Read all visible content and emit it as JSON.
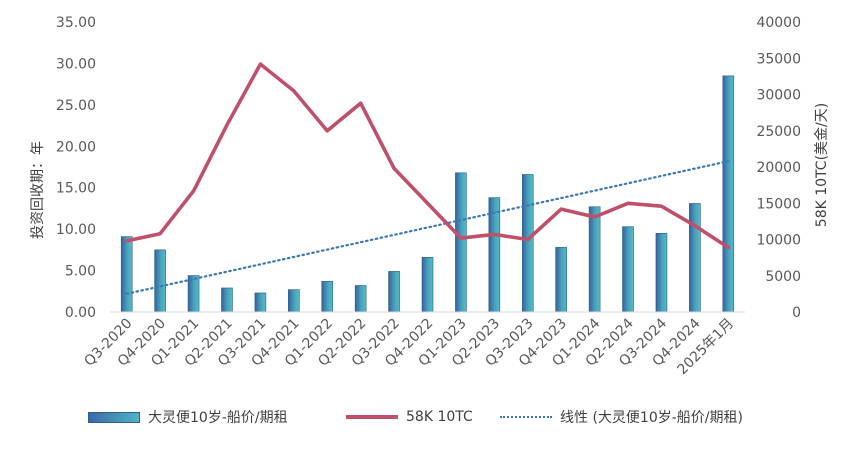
{
  "chart_data": {
    "type": "bar",
    "categories": [
      "Q3-2020",
      "Q4-2020",
      "Q1-2021",
      "Q2-2021",
      "Q3-2021",
      "Q4-2021",
      "Q1-2022",
      "Q2-2022",
      "Q3-2022",
      "Q4-2022",
      "Q1-2023",
      "Q2-2023",
      "Q3-2023",
      "Q4-2023",
      "Q1-2024",
      "Q2-2024",
      "Q3-2024",
      "Q4-2024",
      "2025年1月"
    ],
    "series": [
      {
        "name": "大灵便10岁-船价/期租",
        "type": "bar",
        "axis": "left",
        "values": [
          9.1,
          7.5,
          4.4,
          2.9,
          2.3,
          2.7,
          3.7,
          3.2,
          4.9,
          6.6,
          16.8,
          13.8,
          16.6,
          7.8,
          12.7,
          10.3,
          9.5,
          13.1,
          28.5
        ]
      },
      {
        "name": "58K 10TC",
        "type": "line",
        "axis": "right",
        "values": [
          9800,
          10800,
          16700,
          25800,
          34200,
          30500,
          25000,
          28800,
          19800,
          15000,
          10200,
          10700,
          10000,
          14200,
          13100,
          15000,
          14600,
          11900,
          8900
        ]
      },
      {
        "name": "线性 (大灵便10岁-船价/期租)",
        "type": "trendline",
        "axis": "left",
        "values": [
          2.2,
          3.1,
          4.0,
          4.9,
          5.8,
          6.7,
          7.5,
          8.4,
          9.3,
          10.2,
          11.1,
          12.0,
          12.8,
          13.7,
          14.6,
          15.5,
          16.4,
          17.3,
          18.2
        ]
      }
    ],
    "y_left": {
      "label": "投资回收期：年",
      "range": [
        0,
        35
      ],
      "ticks": [
        "0.00",
        "5.00",
        "10.00",
        "15.00",
        "20.00",
        "25.00",
        "30.00",
        "35.00"
      ]
    },
    "y_right": {
      "label": "58K 10TC(美金/天)",
      "range": [
        0,
        40000
      ],
      "ticks": [
        "0",
        "5000",
        "10000",
        "15000",
        "20000",
        "25000",
        "30000",
        "35000",
        "40000"
      ]
    },
    "grid": false,
    "legend_position": "bottom",
    "colors": {
      "bar_dark": "#3a6aa8",
      "bar_light": "#4fb3c2",
      "line": "#c0506a",
      "trend": "#3a78b5"
    }
  }
}
